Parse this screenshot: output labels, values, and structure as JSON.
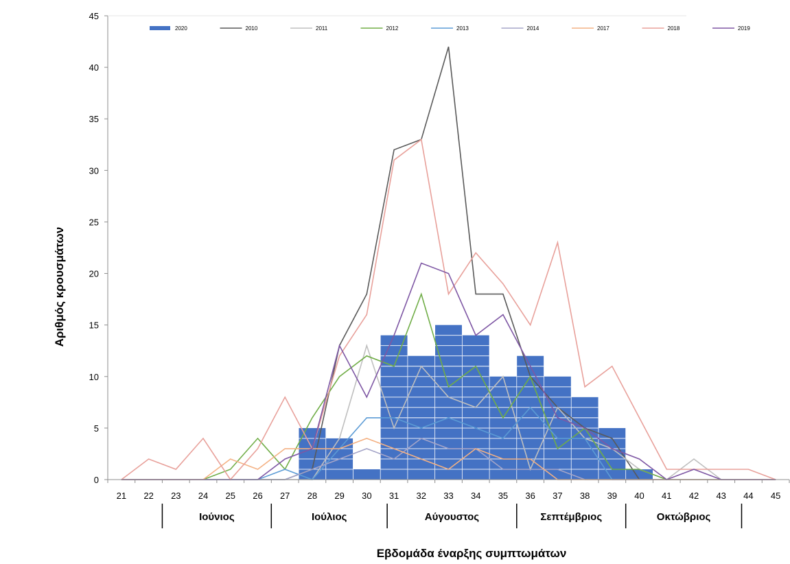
{
  "chart_data": {
    "type": "bar",
    "title": "",
    "xlabel": "Εβδομάδα έναρξης συμπτωμάτων",
    "ylabel": "Αριθμός κρουσμάτων",
    "ylim": [
      0,
      45
    ],
    "yticks": [
      0,
      5,
      10,
      15,
      20,
      25,
      30,
      35,
      40,
      45
    ],
    "x": [
      21,
      22,
      23,
      24,
      25,
      26,
      27,
      28,
      29,
      30,
      31,
      32,
      33,
      34,
      35,
      36,
      37,
      38,
      39,
      40,
      41,
      42,
      43,
      44,
      45
    ],
    "x_tick_labels": [
      "21",
      "22",
      "23",
      "24",
      "25",
      "26",
      "27",
      "28",
      "29",
      "30",
      "31",
      "32",
      "33",
      "34",
      "35",
      "36",
      "37",
      "38",
      "39",
      "40",
      "41",
      "42",
      "43",
      "44",
      "45"
    ],
    "legend_position": "top",
    "grid": false,
    "bar_series": {
      "name": "2020",
      "color": "#4472C4",
      "values": [
        0,
        0,
        0,
        0,
        0,
        0,
        0,
        5,
        4,
        1,
        14,
        12,
        15,
        14,
        10,
        12,
        10,
        8,
        5,
        1,
        0,
        0,
        0,
        0,
        0
      ]
    },
    "line_series": [
      {
        "name": "2010",
        "color": "#595959",
        "values": [
          0,
          0,
          0,
          0,
          0,
          0,
          0,
          1,
          13,
          18,
          32,
          33,
          42,
          18,
          18,
          10,
          7,
          5,
          4,
          0,
          0,
          0,
          0,
          0,
          0
        ]
      },
      {
        "name": "2011",
        "color": "#BFBFBF",
        "values": [
          0,
          0,
          0,
          0,
          0,
          0,
          0,
          0,
          4,
          13,
          5,
          11,
          8,
          7,
          10,
          1,
          7,
          4,
          3,
          1,
          0,
          2,
          0,
          0,
          0
        ]
      },
      {
        "name": "2012",
        "color": "#70AD47",
        "values": [
          0,
          0,
          0,
          0,
          1,
          4,
          1,
          6,
          10,
          12,
          11,
          18,
          9,
          11,
          6,
          10,
          3,
          5,
          1,
          1,
          0,
          0,
          0,
          0,
          0
        ]
      },
      {
        "name": "2013",
        "color": "#5B9BD5",
        "values": [
          0,
          0,
          0,
          0,
          0,
          0,
          1,
          0,
          3,
          6,
          6,
          5,
          6,
          5,
          4,
          7,
          4,
          4,
          0,
          0,
          0,
          0,
          0,
          0,
          0
        ]
      },
      {
        "name": "2014",
        "color": "#A5A5C8",
        "values": [
          0,
          0,
          0,
          0,
          0,
          0,
          0,
          1,
          2,
          3,
          2,
          4,
          3,
          3,
          1,
          1,
          1,
          0,
          0,
          0,
          0,
          0,
          0,
          0,
          0
        ]
      },
      {
        "name": "2017",
        "color": "#F4B183",
        "values": [
          0,
          0,
          0,
          0,
          2,
          1,
          3,
          3,
          3,
          4,
          3,
          2,
          1,
          3,
          2,
          2,
          0,
          0,
          0,
          0,
          0,
          0,
          0,
          0,
          0
        ]
      },
      {
        "name": "2018",
        "color": "#E8A09A",
        "values": [
          0,
          2,
          1,
          4,
          0,
          3,
          8,
          3,
          12,
          16,
          31,
          33,
          18,
          22,
          19,
          15,
          23,
          9,
          11,
          6,
          1,
          1,
          1,
          1,
          0
        ]
      },
      {
        "name": "2019",
        "color": "#7E57A4",
        "values": [
          0,
          0,
          0,
          0,
          0,
          0,
          2,
          3,
          13,
          8,
          14,
          21,
          20,
          14,
          16,
          11,
          6,
          5,
          3,
          2,
          0,
          1,
          0,
          0,
          0
        ]
      }
    ],
    "months": [
      {
        "label": "Ιούνιος",
        "from": 22.5,
        "to": 26.5
      },
      {
        "label": "Ιούλιος",
        "from": 26.5,
        "to": 30.75
      },
      {
        "label": "Αύγουστος",
        "from": 30.75,
        "to": 35.5
      },
      {
        "label": "Σεπτέμβριος",
        "from": 35.5,
        "to": 39.5
      },
      {
        "label": "Οκτώβριος",
        "from": 39.5,
        "to": 43.75
      }
    ]
  }
}
